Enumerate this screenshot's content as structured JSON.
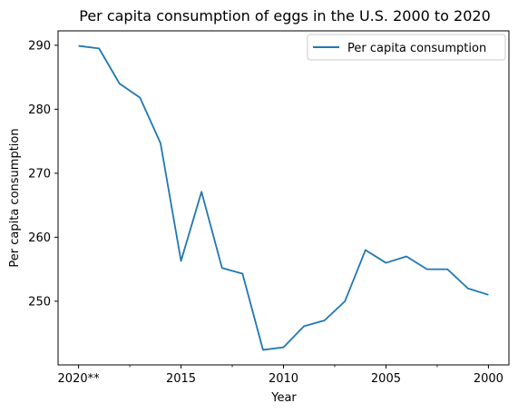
{
  "chart_data": {
    "type": "line",
    "title": "Per capita consumption of eggs in the U.S. 2000 to 2020",
    "xlabel": "Year",
    "ylabel": "Per capita consumption",
    "categories": [
      "2020**",
      "2019",
      "2018",
      "2017",
      "2016",
      "2015",
      "2014",
      "2013",
      "2012",
      "2011",
      "2010",
      "2009",
      "2008",
      "2007",
      "2006",
      "2005",
      "2004",
      "2003",
      "2002",
      "2001",
      "2000"
    ],
    "x_tick_labels": [
      {
        "index": 0,
        "label": "2020**"
      },
      {
        "index": 5,
        "label": "2015"
      },
      {
        "index": 10,
        "label": "2010"
      },
      {
        "index": 15,
        "label": "2005"
      },
      {
        "index": 20,
        "label": "2000"
      }
    ],
    "x_minor_tick_indices": [
      2.5,
      7.5,
      12.5,
      17.5
    ],
    "series": [
      {
        "name": "Per capita consumption",
        "color": "#1f77b4",
        "values": [
          289.9,
          289.5,
          284.0,
          281.8,
          274.7,
          256.3,
          267.1,
          255.2,
          254.3,
          242.4,
          242.8,
          246.1,
          247.0,
          250.0,
          258.0,
          256.0,
          257.0,
          255.0,
          255.0,
          252.0,
          251.0
        ]
      }
    ],
    "y_ticks": [
      250,
      260,
      270,
      280,
      290
    ],
    "ylim": [
      240.05,
      292.25
    ],
    "xlim": [
      -1,
      21
    ],
    "grid": false,
    "legend_position": "top-right"
  }
}
